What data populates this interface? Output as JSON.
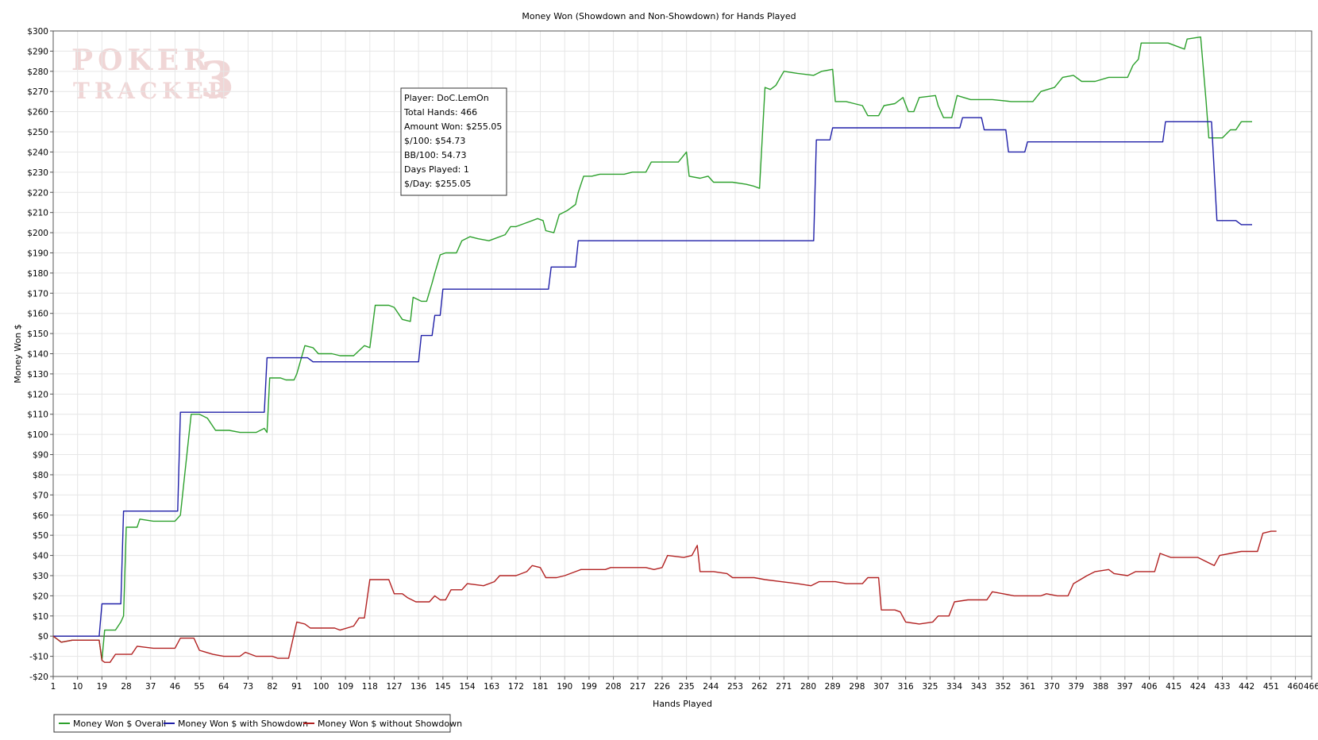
{
  "chart_data": {
    "type": "line",
    "title": "Money Won (Showdown and Non-Showdown) for Hands Played",
    "xlabel": "Hands Played",
    "ylabel": "Money Won $",
    "xlim": [
      1,
      466
    ],
    "ylim": [
      -20,
      300
    ],
    "x_ticks": [
      1,
      10,
      19,
      28,
      37,
      46,
      55,
      64,
      73,
      82,
      91,
      100,
      109,
      118,
      127,
      136,
      145,
      154,
      163,
      172,
      181,
      190,
      199,
      208,
      217,
      226,
      235,
      244,
      253,
      262,
      271,
      280,
      289,
      298,
      307,
      316,
      325,
      334,
      343,
      352,
      361,
      370,
      379,
      388,
      397,
      406,
      415,
      424,
      433,
      442,
      451,
      460,
      466
    ],
    "y_ticks": [
      -20,
      -10,
      0,
      10,
      20,
      30,
      40,
      50,
      60,
      70,
      80,
      90,
      100,
      110,
      120,
      130,
      140,
      150,
      160,
      170,
      180,
      190,
      200,
      210,
      220,
      230,
      240,
      250,
      260,
      270,
      280,
      290,
      300
    ],
    "y_tick_labels": [
      "-$20",
      "-$10",
      "$0",
      "$10",
      "$20",
      "$30",
      "$40",
      "$50",
      "$60",
      "$70",
      "$80",
      "$90",
      "$100",
      "$110",
      "$120",
      "$130",
      "$140",
      "$150",
      "$160",
      "$170",
      "$180",
      "$190",
      "$200",
      "$210",
      "$220",
      "$230",
      "$240",
      "$250",
      "$260",
      "$270",
      "$280",
      "$290",
      "$300"
    ],
    "grid": true,
    "legend_position": "bottom-left",
    "series": [
      {
        "name": "Money Won $ Overall",
        "color": "#2ca02c",
        "points": [
          [
            1,
            0
          ],
          [
            4,
            -3
          ],
          [
            8,
            -2
          ],
          [
            18,
            -2
          ],
          [
            19,
            -12
          ],
          [
            20,
            3
          ],
          [
            24,
            3
          ],
          [
            26,
            7
          ],
          [
            27,
            10
          ],
          [
            28,
            54
          ],
          [
            32,
            54
          ],
          [
            33,
            58
          ],
          [
            38,
            57
          ],
          [
            46,
            57
          ],
          [
            48,
            60
          ],
          [
            52,
            110
          ],
          [
            55,
            110
          ],
          [
            58,
            108
          ],
          [
            61,
            102
          ],
          [
            66,
            102
          ],
          [
            70,
            101
          ],
          [
            76,
            101
          ],
          [
            79,
            103
          ],
          [
            80,
            101
          ],
          [
            81,
            128
          ],
          [
            85,
            128
          ],
          [
            87,
            127
          ],
          [
            90,
            127
          ],
          [
            91,
            130
          ],
          [
            94,
            144
          ],
          [
            97,
            143
          ],
          [
            99,
            140
          ],
          [
            104,
            140
          ],
          [
            107,
            139
          ],
          [
            112,
            139
          ],
          [
            116,
            144
          ],
          [
            118,
            143
          ],
          [
            120,
            164
          ],
          [
            125,
            164
          ],
          [
            127,
            163
          ],
          [
            130,
            157
          ],
          [
            133,
            156
          ],
          [
            134,
            168
          ],
          [
            137,
            166
          ],
          [
            139,
            166
          ],
          [
            141,
            175
          ],
          [
            142,
            180
          ],
          [
            144,
            189
          ],
          [
            146,
            190
          ],
          [
            150,
            190
          ],
          [
            152,
            196
          ],
          [
            155,
            198
          ],
          [
            158,
            197
          ],
          [
            162,
            196
          ],
          [
            164,
            197
          ],
          [
            168,
            199
          ],
          [
            170,
            203
          ],
          [
            172,
            203
          ],
          [
            176,
            205
          ],
          [
            180,
            207
          ],
          [
            182,
            206
          ],
          [
            183,
            201
          ],
          [
            186,
            200
          ],
          [
            188,
            209
          ],
          [
            191,
            211
          ],
          [
            194,
            214
          ],
          [
            195,
            220
          ],
          [
            197,
            228
          ],
          [
            200,
            228
          ],
          [
            203,
            229
          ],
          [
            212,
            229
          ],
          [
            215,
            230
          ],
          [
            220,
            230
          ],
          [
            222,
            235
          ],
          [
            229,
            235
          ],
          [
            232,
            235
          ],
          [
            235,
            240
          ],
          [
            236,
            228
          ],
          [
            240,
            227
          ],
          [
            243,
            228
          ],
          [
            245,
            225
          ],
          [
            252,
            225
          ],
          [
            257,
            224
          ],
          [
            260,
            223
          ],
          [
            262,
            222
          ],
          [
            264,
            272
          ],
          [
            266,
            271
          ],
          [
            268,
            273
          ],
          [
            271,
            280
          ],
          [
            276,
            279
          ],
          [
            282,
            278
          ],
          [
            285,
            280
          ],
          [
            289,
            281
          ],
          [
            290,
            265
          ],
          [
            294,
            265
          ],
          [
            297,
            264
          ],
          [
            300,
            263
          ],
          [
            302,
            258
          ],
          [
            306,
            258
          ],
          [
            308,
            263
          ],
          [
            312,
            264
          ],
          [
            315,
            267
          ],
          [
            317,
            260
          ],
          [
            319,
            260
          ],
          [
            321,
            267
          ],
          [
            327,
            268
          ],
          [
            328,
            263
          ],
          [
            330,
            257
          ],
          [
            333,
            257
          ],
          [
            335,
            268
          ],
          [
            340,
            266
          ],
          [
            348,
            266
          ],
          [
            355,
            265
          ],
          [
            363,
            265
          ],
          [
            366,
            270
          ],
          [
            371,
            272
          ],
          [
            374,
            277
          ],
          [
            378,
            278
          ],
          [
            381,
            275
          ],
          [
            386,
            275
          ],
          [
            391,
            277
          ],
          [
            398,
            277
          ],
          [
            400,
            283
          ],
          [
            402,
            286
          ],
          [
            403,
            294
          ],
          [
            410,
            294
          ],
          [
            413,
            294
          ],
          [
            417,
            292
          ],
          [
            419,
            291
          ],
          [
            420,
            296
          ],
          [
            425,
            297
          ],
          [
            427,
            265
          ],
          [
            428,
            247
          ],
          [
            433,
            247
          ],
          [
            436,
            251
          ],
          [
            438,
            251
          ],
          [
            440,
            255
          ],
          [
            444,
            255
          ]
        ]
      },
      {
        "name": "Money Won $ with Showdown",
        "color": "#1f1fa8",
        "points": [
          [
            1,
            0
          ],
          [
            18,
            0
          ],
          [
            19,
            16
          ],
          [
            26,
            16
          ],
          [
            27,
            62
          ],
          [
            47,
            62
          ],
          [
            48,
            111
          ],
          [
            79,
            111
          ],
          [
            80,
            138
          ],
          [
            95,
            138
          ],
          [
            97,
            136
          ],
          [
            136,
            136
          ],
          [
            137,
            149
          ],
          [
            141,
            149
          ],
          [
            142,
            159
          ],
          [
            144,
            159
          ],
          [
            145,
            172
          ],
          [
            184,
            172
          ],
          [
            185,
            183
          ],
          [
            194,
            183
          ],
          [
            195,
            196
          ],
          [
            282,
            196
          ],
          [
            283,
            246
          ],
          [
            288,
            246
          ],
          [
            289,
            252
          ],
          [
            336,
            252
          ],
          [
            337,
            257
          ],
          [
            344,
            257
          ],
          [
            345,
            251
          ],
          [
            353,
            251
          ],
          [
            354,
            240
          ],
          [
            360,
            240
          ],
          [
            361,
            245
          ],
          [
            411,
            245
          ],
          [
            412,
            255
          ],
          [
            429,
            255
          ],
          [
            431,
            206
          ],
          [
            438,
            206
          ],
          [
            440,
            204
          ],
          [
            444,
            204
          ]
        ]
      },
      {
        "name": "Money Won $ without Showdown",
        "color": "#b22222",
        "points": [
          [
            1,
            0
          ],
          [
            4,
            -3
          ],
          [
            8,
            -2
          ],
          [
            18,
            -2
          ],
          [
            19,
            -12
          ],
          [
            20,
            -13
          ],
          [
            22,
            -13
          ],
          [
            24,
            -9
          ],
          [
            30,
            -9
          ],
          [
            32,
            -5
          ],
          [
            38,
            -6
          ],
          [
            46,
            -6
          ],
          [
            48,
            -1
          ],
          [
            53,
            -1
          ],
          [
            55,
            -7
          ],
          [
            60,
            -9
          ],
          [
            64,
            -10
          ],
          [
            70,
            -10
          ],
          [
            72,
            -8
          ],
          [
            76,
            -10
          ],
          [
            82,
            -10
          ],
          [
            84,
            -11
          ],
          [
            88,
            -11
          ],
          [
            91,
            7
          ],
          [
            94,
            6
          ],
          [
            96,
            4
          ],
          [
            105,
            4
          ],
          [
            107,
            3
          ],
          [
            112,
            5
          ],
          [
            114,
            9
          ],
          [
            116,
            9
          ],
          [
            118,
            28
          ],
          [
            125,
            28
          ],
          [
            127,
            21
          ],
          [
            130,
            21
          ],
          [
            132,
            19
          ],
          [
            135,
            17
          ],
          [
            140,
            17
          ],
          [
            142,
            20
          ],
          [
            144,
            18
          ],
          [
            146,
            18
          ],
          [
            148,
            23
          ],
          [
            152,
            23
          ],
          [
            154,
            26
          ],
          [
            160,
            25
          ],
          [
            164,
            27
          ],
          [
            166,
            30
          ],
          [
            172,
            30
          ],
          [
            176,
            32
          ],
          [
            178,
            35
          ],
          [
            181,
            34
          ],
          [
            183,
            29
          ],
          [
            187,
            29
          ],
          [
            190,
            30
          ],
          [
            194,
            32
          ],
          [
            196,
            33
          ],
          [
            205,
            33
          ],
          [
            207,
            34
          ],
          [
            220,
            34
          ],
          [
            223,
            33
          ],
          [
            226,
            34
          ],
          [
            228,
            40
          ],
          [
            234,
            39
          ],
          [
            237,
            40
          ],
          [
            239,
            45
          ],
          [
            240,
            32
          ],
          [
            245,
            32
          ],
          [
            250,
            31
          ],
          [
            252,
            29
          ],
          [
            260,
            29
          ],
          [
            264,
            28
          ],
          [
            270,
            27
          ],
          [
            276,
            26
          ],
          [
            281,
            25
          ],
          [
            284,
            27
          ],
          [
            290,
            27
          ],
          [
            294,
            26
          ],
          [
            300,
            26
          ],
          [
            302,
            29
          ],
          [
            306,
            29
          ],
          [
            307,
            13
          ],
          [
            312,
            13
          ],
          [
            314,
            12
          ],
          [
            316,
            7
          ],
          [
            321,
            6
          ],
          [
            326,
            7
          ],
          [
            328,
            10
          ],
          [
            332,
            10
          ],
          [
            334,
            17
          ],
          [
            339,
            18
          ],
          [
            346,
            18
          ],
          [
            348,
            22
          ],
          [
            352,
            21
          ],
          [
            356,
            20
          ],
          [
            366,
            20
          ],
          [
            368,
            21
          ],
          [
            372,
            20
          ],
          [
            376,
            20
          ],
          [
            378,
            26
          ],
          [
            383,
            30
          ],
          [
            386,
            32
          ],
          [
            391,
            33
          ],
          [
            393,
            31
          ],
          [
            398,
            30
          ],
          [
            401,
            32
          ],
          [
            408,
            32
          ],
          [
            410,
            41
          ],
          [
            414,
            39
          ],
          [
            424,
            39
          ],
          [
            430,
            35
          ],
          [
            432,
            40
          ],
          [
            436,
            41
          ],
          [
            440,
            42
          ],
          [
            446,
            42
          ],
          [
            448,
            51
          ],
          [
            451,
            52
          ],
          [
            453,
            52
          ]
        ]
      }
    ],
    "info_box": [
      "Player: DoC.LemOn",
      "Total Hands: 466",
      "Amount Won: $255.05",
      "$/100: $54.73",
      "BB/100: 54.73",
      "Days Played: 1",
      "$/Day: $255.05"
    ],
    "watermark": {
      "line1": "POKER",
      "line2": "TRACKER",
      "mark": "3",
      "color": "#f0d6d6"
    }
  }
}
